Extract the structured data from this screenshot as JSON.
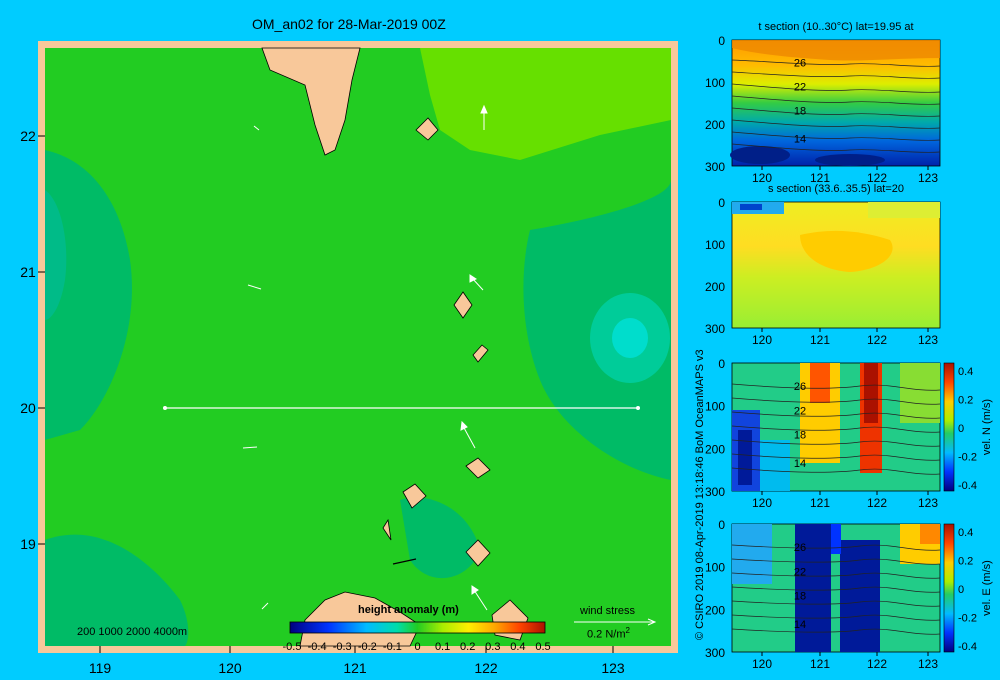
{
  "title": "OM_an02 for 28-Mar-2019 00Z",
  "credit": "© CSIRO 2019  08-Apr-2019 13:18:46 BoM OceanMAPS v3",
  "colors": {
    "background": "#00ccff",
    "land": "#f8c89a",
    "sea_main": "#22cc22",
    "sea_light": "#66e000",
    "sea_dark": "#00bb66"
  },
  "map": {
    "x_ticks": [
      "119",
      "120",
      "121",
      "122",
      "123"
    ],
    "y_ticks": [
      "22",
      "21",
      "20",
      "19"
    ],
    "depth_legend": "200  1000  2000  4000m",
    "colorbar_title": "height anomaly (m)",
    "colorbar_ticks": [
      "-0.5",
      "-0.4",
      "-0.3",
      "-0.2",
      "-0.1",
      "0",
      "0.1",
      "0.2",
      "0.3",
      "0.4",
      "0.5"
    ],
    "wind_label": "wind stress",
    "wind_scale": "0.2 N/m",
    "wind_scale_exp": "2",
    "section_line": {
      "lat": 20,
      "lon_start": 119.5,
      "lon_end": 123.2
    }
  },
  "panels": [
    {
      "title": "t section (10..30°C) lat=19.95 at",
      "x_ticks": [
        "120",
        "121",
        "122",
        "123"
      ],
      "y_ticks": [
        "0",
        "100",
        "200",
        "300"
      ],
      "contour_labels": [
        "26",
        "22",
        "18",
        "14"
      ],
      "colorbar": null
    },
    {
      "title": "s section (33.6..35.5) lat=20",
      "x_ticks": [
        "120",
        "121",
        "122",
        "123"
      ],
      "y_ticks": [
        "0",
        "100",
        "200",
        "300"
      ],
      "contour_labels": [],
      "colorbar": null
    },
    {
      "title": "",
      "x_ticks": [
        "120",
        "121",
        "122",
        "123"
      ],
      "y_ticks": [
        "0",
        "100",
        "200",
        "300"
      ],
      "contour_labels": [
        "26",
        "22",
        "18",
        "14"
      ],
      "colorbar": {
        "label": "vel. N (m/s)",
        "ticks": [
          "0.4",
          "0.2",
          "0",
          "-0.2",
          "-0.4"
        ]
      }
    },
    {
      "title": "",
      "x_ticks": [
        "120",
        "121",
        "122",
        "123"
      ],
      "y_ticks": [
        "0",
        "100",
        "200",
        "300"
      ],
      "contour_labels": [
        "26",
        "22",
        "18",
        "14"
      ],
      "colorbar": {
        "label": "vel. E (m/s)",
        "ticks": [
          "0.4",
          "0.2",
          "0",
          "-0.2",
          "-0.4"
        ]
      }
    }
  ],
  "chart_data": [
    {
      "type": "heatmap",
      "title": "OM_an02 for 28-Mar-2019 00Z",
      "xlabel": "",
      "ylabel": "",
      "xlim": [
        118.5,
        123.5
      ],
      "ylim": [
        18.3,
        22.7
      ],
      "colorbar_label": "height anomaly (m)",
      "clim": [
        -0.5,
        0.5
      ],
      "section_lat": 20,
      "section_lon": [
        119.5,
        123.2
      ]
    },
    {
      "type": "heatmap",
      "title": "t section (10..30°C) lat=19.95 at",
      "xlim": [
        119.5,
        123.2
      ],
      "ylim": [
        300,
        0
      ],
      "contour_labels": [
        26,
        22,
        18,
        14
      ]
    },
    {
      "type": "heatmap",
      "title": "s section (33.6..35.5) lat=20",
      "xlim": [
        119.5,
        123.2
      ],
      "ylim": [
        300,
        0
      ]
    },
    {
      "type": "heatmap",
      "title": "",
      "xlim": [
        119.5,
        123.2
      ],
      "ylim": [
        300,
        0
      ],
      "colorbar_label": "vel. N (m/s)",
      "clim": [
        -0.4,
        0.4
      ]
    },
    {
      "type": "heatmap",
      "title": "",
      "xlim": [
        119.5,
        123.2
      ],
      "ylim": [
        300,
        0
      ],
      "colorbar_label": "vel. E (m/s)",
      "clim": [
        -0.4,
        0.4
      ]
    }
  ]
}
